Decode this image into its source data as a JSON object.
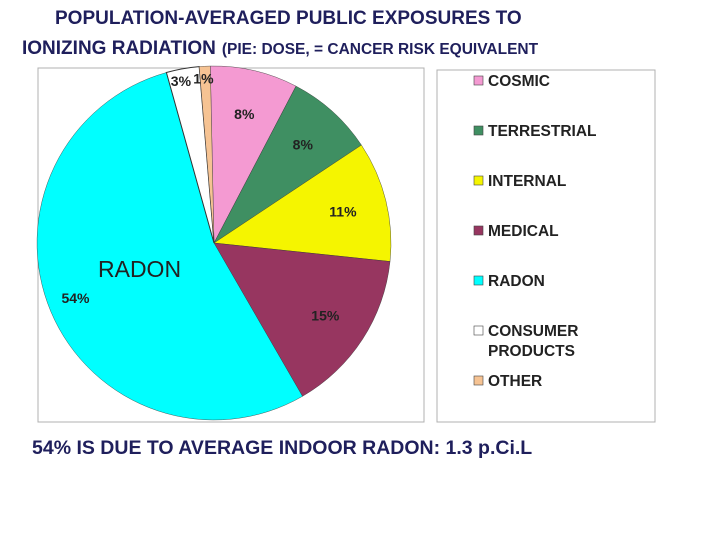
{
  "title": {
    "line1": "POPULATION-AVERAGED PUBLIC EXPOSURES TO",
    "line2_main": "IONIZING RADIATION",
    "line2_sub": "(PIE: DOSE, = CANCER RISK EQUIVALENT"
  },
  "footnote": "54% IS DUE TO AVERAGE INDOOR RADON:  1.3 p.Ci.L",
  "chart_data": {
    "type": "pie",
    "legend_position": "right",
    "callout": "RADON",
    "slices": [
      {
        "name": "COSMIC",
        "value": 8,
        "label": "8%",
        "color": "#f49ad2"
      },
      {
        "name": "TERRESTRIAL",
        "value": 8,
        "label": "8%",
        "color": "#3f8f62"
      },
      {
        "name": "INTERNAL",
        "value": 11,
        "label": "11%",
        "color": "#f5f500"
      },
      {
        "name": "MEDICAL",
        "value": 15,
        "label": "15%",
        "color": "#973660"
      },
      {
        "name": "RADON",
        "value": 54,
        "label": "54%",
        "color": "#00ffff"
      },
      {
        "name": "CONSUMER PRODUCTS",
        "value": 3,
        "label": "3%",
        "color": "#ffffff"
      },
      {
        "name": "OTHER",
        "value": 1,
        "label": "1%",
        "color": "#f6c393"
      }
    ]
  }
}
